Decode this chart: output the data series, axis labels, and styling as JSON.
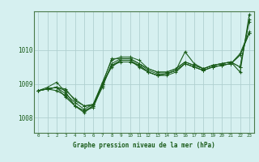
{
  "title": "Graphe pression niveau de la mer (hPa)",
  "bg_color": "#d6f0f0",
  "grid_color": "#b0d0d0",
  "line_color": "#1a5c1a",
  "marker_color": "#1a5c1a",
  "xlim": [
    -0.5,
    23.5
  ],
  "ylim": [
    1007.55,
    1011.15
  ],
  "yticks": [
    1008,
    1009,
    1010
  ],
  "xticks": [
    0,
    1,
    2,
    3,
    4,
    5,
    6,
    7,
    8,
    9,
    10,
    11,
    12,
    13,
    14,
    15,
    16,
    17,
    18,
    19,
    20,
    21,
    22,
    23
  ],
  "series": [
    [
      1008.8,
      1008.85,
      1008.9,
      1008.85,
      1008.5,
      1008.35,
      1008.35,
      1008.9,
      1009.6,
      1009.75,
      1009.75,
      1009.6,
      1009.4,
      1009.3,
      1009.3,
      1009.4,
      1009.6,
      1009.5,
      1009.4,
      1009.5,
      1009.55,
      1009.6,
      1009.9,
      1010.55
    ],
    [
      1008.8,
      1008.85,
      1008.9,
      1008.8,
      1008.55,
      1008.35,
      1008.4,
      1009.0,
      1009.75,
      1009.75,
      1009.75,
      1009.6,
      1009.45,
      1009.35,
      1009.35,
      1009.45,
      1009.65,
      1009.55,
      1009.45,
      1009.55,
      1009.6,
      1009.65,
      1009.5,
      1010.9
    ],
    [
      1008.8,
      1008.85,
      1008.9,
      1008.6,
      1008.35,
      1008.2,
      1008.35,
      1009.0,
      1009.55,
      1009.65,
      1009.65,
      1009.55,
      1009.35,
      1009.25,
      1009.25,
      1009.35,
      1009.6,
      1009.5,
      1009.4,
      1009.5,
      1009.55,
      1009.6,
      1009.85,
      1010.5
    ],
    [
      1008.8,
      1008.85,
      1008.9,
      1008.7,
      1008.45,
      1008.25,
      1008.4,
      1009.05,
      1009.7,
      1009.8,
      1009.8,
      1009.7,
      1009.45,
      1009.35,
      1009.35,
      1009.45,
      1009.65,
      1009.55,
      1009.45,
      1009.55,
      1009.6,
      1009.65,
      1009.5,
      1010.85
    ],
    [
      1008.8,
      1008.9,
      1009.05,
      1008.75,
      1008.35,
      1008.2,
      1008.3,
      1008.95,
      1009.55,
      1009.7,
      1009.7,
      1009.55,
      1009.35,
      1009.25,
      1009.3,
      1009.4,
      1009.6,
      1009.5,
      1009.4,
      1009.5,
      1009.55,
      1009.6,
      1009.85,
      1010.5
    ]
  ],
  "special_series": {
    "data": [
      1008.8,
      1008.85,
      1008.8,
      1008.65,
      1008.35,
      1008.15,
      1008.35,
      1009.0,
      1009.5,
      1009.7,
      1009.7,
      1009.5,
      1009.35,
      1009.25,
      1009.3,
      1009.4,
      1009.95,
      1009.6,
      1009.45,
      1009.55,
      1009.6,
      1009.65,
      1009.35,
      1011.05
    ],
    "color": "#1a5c1a"
  },
  "figsize": [
    3.2,
    2.0
  ],
  "dpi": 100
}
